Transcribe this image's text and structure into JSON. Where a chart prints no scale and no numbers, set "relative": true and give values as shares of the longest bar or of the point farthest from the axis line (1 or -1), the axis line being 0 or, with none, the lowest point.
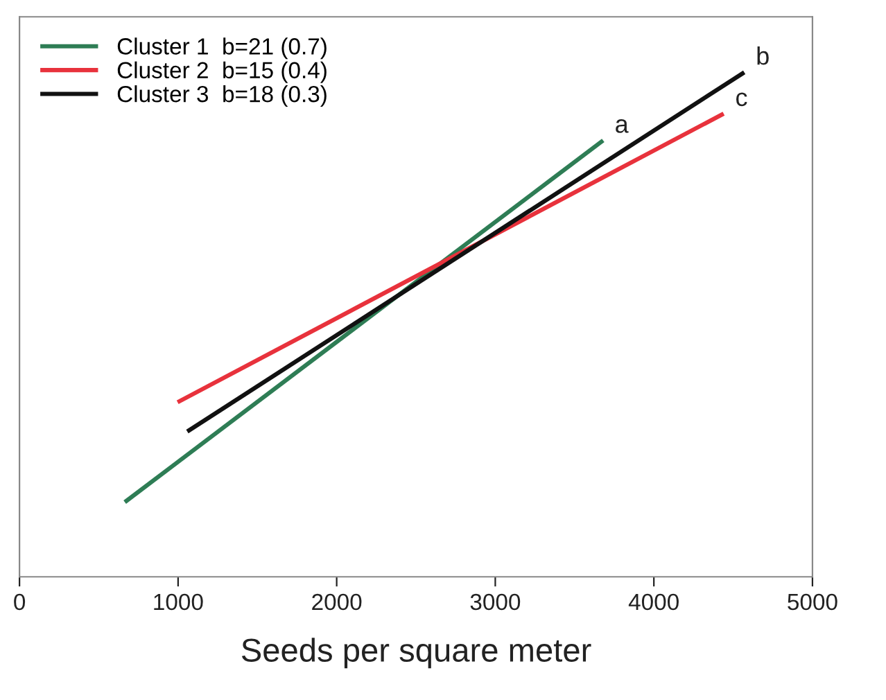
{
  "chart_data": {
    "type": "line",
    "xlabel": "Seeds per square meter",
    "relative": true,
    "xlim": [
      0,
      5000
    ],
    "xticks": [
      0,
      1000,
      2000,
      3000,
      4000,
      5000
    ],
    "series": [
      {
        "name": "Cluster 1  b=21 (0.7)",
        "color": "#2e7d55",
        "x": [
          664,
          3680
        ],
        "values": [
          0.148,
          0.865
        ]
      },
      {
        "name": "Cluster 2  b=15 (0.4)",
        "color": "#e8323c",
        "x": [
          997,
          4440
        ],
        "values": [
          0.346,
          0.918
        ]
      },
      {
        "name": "Cluster 3  b=18 (0.3)",
        "color": "#111111",
        "x": [
          1058,
          4570
        ],
        "values": [
          0.288,
          1.0
        ]
      }
    ],
    "annotations": [
      {
        "text": "a",
        "x": 3680,
        "y": 0.865
      },
      {
        "text": "b",
        "x": 4570,
        "y": 1.0
      },
      {
        "text": "c",
        "x": 4440,
        "y": 0.918
      }
    ],
    "legend": "top left",
    "grid": false,
    "marker": "none",
    "line_style": "solid"
  }
}
